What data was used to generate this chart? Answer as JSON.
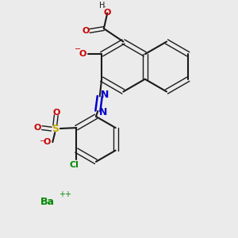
{
  "bg_color": "#ebebeb",
  "bond_color": "#1a1a1a",
  "red_color": "#cc0000",
  "blue_color": "#0000cc",
  "green_color": "#008800",
  "yellow_color": "#ccaa00",
  "figsize": [
    3.0,
    3.0
  ],
  "dpi": 100,
  "xlim": [
    0,
    10
  ],
  "ylim": [
    0,
    10
  ]
}
